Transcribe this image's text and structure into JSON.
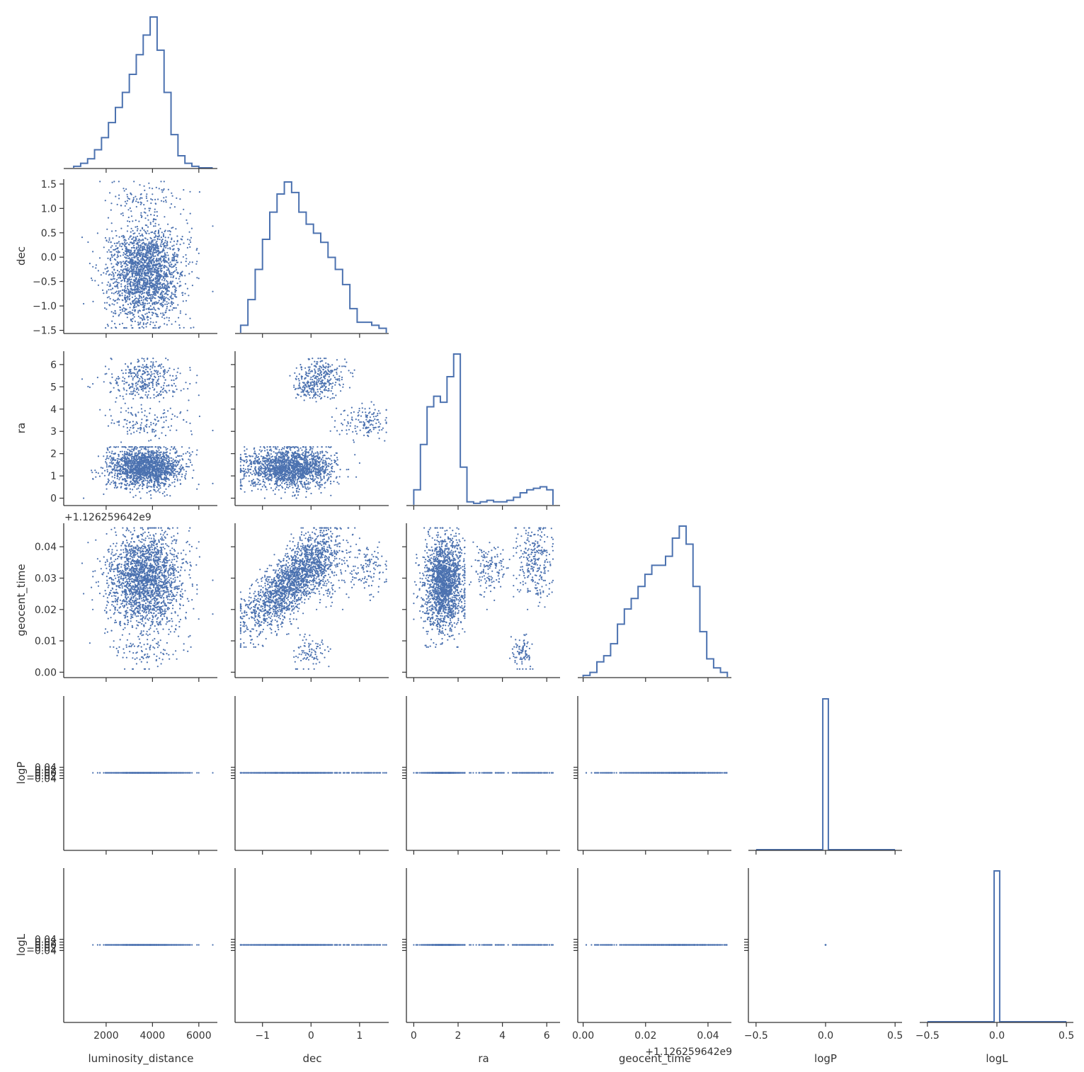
{
  "colors": {
    "series": "#4c72b0",
    "axis": "#333333",
    "background": "#ffffff"
  },
  "chart_data": {
    "type": "corner-pairplot",
    "title": "",
    "grid": false,
    "legend": "none",
    "variables": [
      {
        "name": "luminosity_distance",
        "xlabel": "luminosity_distance",
        "ylabel": "",
        "range": [
          200,
          6800
        ],
        "ticks": [
          2000,
          4000,
          6000
        ],
        "ticklabels": [
          "2000",
          "4000",
          "6000"
        ]
      },
      {
        "name": "dec",
        "xlabel": "dec",
        "ylabel": "dec",
        "range": [
          -1.55,
          1.6
        ],
        "ticks": [
          -1,
          0,
          1
        ],
        "ticklabels": [
          "−1",
          "0",
          "1"
        ],
        "yticks": [
          -1.5,
          -1.0,
          -0.5,
          0.0,
          0.5,
          1.0,
          1.5
        ],
        "yticklabels": [
          "−1.5",
          "−1.0",
          "−0.5",
          "0.0",
          "0.5",
          "1.0",
          "1.5"
        ]
      },
      {
        "name": "ra",
        "xlabel": "ra",
        "ylabel": "ra",
        "range": [
          -0.3,
          6.6
        ],
        "ticks": [
          0,
          2,
          4,
          6
        ],
        "ticklabels": [
          "0",
          "2",
          "4",
          "6"
        ],
        "yticks": [
          0,
          1,
          2,
          3,
          4,
          5,
          6
        ],
        "yticklabels": [
          "0",
          "1",
          "2",
          "3",
          "4",
          "5",
          "6"
        ]
      },
      {
        "name": "geocent_time",
        "xlabel": "geocent_time",
        "ylabel": "geocent_time",
        "range": [
          -0.0015,
          0.0475
        ],
        "ticks": [
          0.0,
          0.02,
          0.04
        ],
        "ticklabels": [
          "0.00",
          "0.02",
          "0.04"
        ],
        "yticks": [
          0.0,
          0.01,
          0.02,
          0.03,
          0.04
        ],
        "yticklabels": [
          "0.00",
          "0.01",
          "0.02",
          "0.03",
          "0.04"
        ],
        "offset_label": "+1.126259642e9"
      },
      {
        "name": "logP",
        "xlabel": "logP",
        "ylabel": "logP",
        "range": [
          -0.55,
          0.55
        ],
        "ticks": [
          -0.5,
          0.0,
          0.5
        ],
        "ticklabels": [
          "−0.5",
          "0.0",
          "0.5"
        ],
        "yticks": [
          -0.04,
          -0.02,
          0.0,
          0.02,
          0.04
        ],
        "yticklabels": [
          "−0.04",
          "−0.02",
          "0.00",
          "0.02",
          "0.04"
        ]
      },
      {
        "name": "logL",
        "xlabel": "logL",
        "ylabel": "logL",
        "range": [
          -0.55,
          0.55
        ],
        "ticks": [
          -0.5,
          0.0,
          0.5
        ],
        "ticklabels": [
          "−0.5",
          "0.0",
          "0.5"
        ],
        "yticks": [
          -0.04,
          -0.02,
          0.0,
          0.02,
          0.04
        ],
        "yticklabels": [
          "−0.04",
          "−0.02",
          "0.00",
          "0.02",
          "0.04"
        ]
      }
    ],
    "diagonal": [
      {
        "variable": "luminosity_distance",
        "type": "step-histogram",
        "x": [
          600,
          900,
          1200,
          1500,
          1800,
          2100,
          2400,
          2700,
          3000,
          3300,
          3600,
          3900,
          4200,
          4500,
          4800,
          5100,
          5400,
          5700,
          6000,
          6300,
          6600
        ],
        "values": [
          0.01,
          0.03,
          0.06,
          0.12,
          0.2,
          0.3,
          0.4,
          0.5,
          0.62,
          0.75,
          0.88,
          1.0,
          0.78,
          0.5,
          0.22,
          0.08,
          0.03,
          0.01,
          0.0,
          0.0,
          0.0
        ]
      },
      {
        "variable": "dec",
        "type": "step-histogram",
        "x": [
          -1.45,
          -1.3,
          -1.15,
          -1.0,
          -0.85,
          -0.7,
          -0.55,
          -0.4,
          -0.25,
          -0.1,
          0.05,
          0.2,
          0.35,
          0.5,
          0.65,
          0.8,
          0.95,
          1.1,
          1.25,
          1.4,
          1.55
        ],
        "values": [
          0.05,
          0.22,
          0.42,
          0.62,
          0.8,
          0.92,
          1.0,
          0.93,
          0.8,
          0.72,
          0.66,
          0.6,
          0.5,
          0.42,
          0.32,
          0.16,
          0.07,
          0.07,
          0.05,
          0.03,
          0.0
        ]
      },
      {
        "variable": "ra",
        "type": "step-histogram",
        "x": [
          0.0,
          0.3,
          0.6,
          0.9,
          1.2,
          1.5,
          1.8,
          2.1,
          2.4,
          2.7,
          3.0,
          3.3,
          3.6,
          3.9,
          4.2,
          4.5,
          4.8,
          5.1,
          5.4,
          5.7,
          6.0,
          6.28
        ],
        "values": [
          0.1,
          0.4,
          0.65,
          0.72,
          0.68,
          0.85,
          1.0,
          0.25,
          0.02,
          0.01,
          0.02,
          0.03,
          0.02,
          0.02,
          0.03,
          0.05,
          0.08,
          0.1,
          0.11,
          0.12,
          0.1,
          0.0
        ]
      },
      {
        "variable": "geocent_time",
        "type": "step-histogram",
        "x": [
          0.0,
          0.0022,
          0.0044,
          0.0066,
          0.0088,
          0.011,
          0.0132,
          0.0154,
          0.0176,
          0.0198,
          0.022,
          0.0242,
          0.0264,
          0.0286,
          0.0308,
          0.033,
          0.0352,
          0.0374,
          0.0396,
          0.0418,
          0.044,
          0.0462
        ],
        "values": [
          0.01,
          0.03,
          0.1,
          0.14,
          0.22,
          0.35,
          0.45,
          0.52,
          0.6,
          0.68,
          0.74,
          0.74,
          0.8,
          0.92,
          1.0,
          0.88,
          0.6,
          0.3,
          0.12,
          0.06,
          0.03,
          0.0
        ]
      },
      {
        "variable": "logP",
        "type": "step-histogram",
        "x": [
          -0.5,
          -0.02,
          0.02,
          0.5
        ],
        "values": [
          0.0,
          1.0,
          0.0,
          0.0
        ]
      },
      {
        "variable": "logL",
        "type": "step-histogram",
        "x": [
          -0.5,
          -0.02,
          0.02,
          0.5
        ],
        "values": [
          0.0,
          1.0,
          0.0,
          0.0
        ]
      }
    ],
    "scatter_note": "off-diagonal panels: scatter of posterior samples for each variable pair (lower triangle)"
  }
}
